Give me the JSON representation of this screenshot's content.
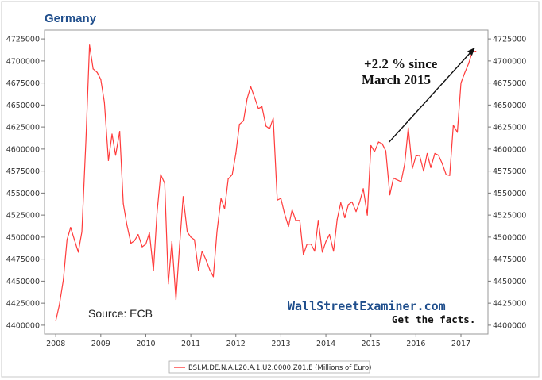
{
  "chart_data": {
    "type": "line",
    "title": "Germany",
    "xlabel": "",
    "ylabel": "",
    "xlim": [
      2007.75,
      2017.6
    ],
    "ylim": [
      4390000,
      4735000
    ],
    "xticks": [
      "2008",
      "2009",
      "2010",
      "2011",
      "2012",
      "2013",
      "2014",
      "2015",
      "2016",
      "2017"
    ],
    "yticks": [
      "4400000",
      "4425000",
      "4450000",
      "4475000",
      "4500000",
      "4525000",
      "4550000",
      "4575000",
      "4600000",
      "4625000",
      "4650000",
      "4675000",
      "4700000",
      "4725000"
    ],
    "grid": false,
    "legend_position": "bottom-center",
    "series": [
      {
        "name": "BSI.M.DE.N.A.L20.A.1.U2.0000.Z01.E (Millions of Euro)",
        "color": "#ff3b3b",
        "x": [
          2008.0,
          2008.08,
          2008.17,
          2008.25,
          2008.33,
          2008.42,
          2008.5,
          2008.58,
          2008.67,
          2008.75,
          2008.83,
          2008.92,
          2009.0,
          2009.08,
          2009.17,
          2009.25,
          2009.33,
          2009.42,
          2009.5,
          2009.58,
          2009.67,
          2009.75,
          2009.83,
          2009.92,
          2010.0,
          2010.08,
          2010.17,
          2010.25,
          2010.33,
          2010.42,
          2010.5,
          2010.58,
          2010.67,
          2010.75,
          2010.83,
          2010.92,
          2011.0,
          2011.08,
          2011.17,
          2011.25,
          2011.33,
          2011.42,
          2011.5,
          2011.58,
          2011.67,
          2011.75,
          2011.83,
          2011.92,
          2012.0,
          2012.08,
          2012.17,
          2012.25,
          2012.33,
          2012.42,
          2012.5,
          2012.58,
          2012.67,
          2012.75,
          2012.83,
          2012.92,
          2013.0,
          2013.08,
          2013.17,
          2013.25,
          2013.33,
          2013.42,
          2013.5,
          2013.58,
          2013.67,
          2013.75,
          2013.83,
          2013.92,
          2014.0,
          2014.08,
          2014.17,
          2014.25,
          2014.33,
          2014.42,
          2014.5,
          2014.58,
          2014.67,
          2014.75,
          2014.83,
          2014.92,
          2015.0,
          2015.08,
          2015.17,
          2015.25,
          2015.33,
          2015.42,
          2015.5,
          2015.58,
          2015.67,
          2015.75,
          2015.83,
          2015.92,
          2016.0,
          2016.08,
          2016.17,
          2016.25,
          2016.33,
          2016.42,
          2016.5,
          2016.58,
          2016.67,
          2016.75,
          2016.83,
          2016.92,
          2017.0,
          2017.08,
          2017.17,
          2017.25,
          2017.33
        ],
        "values": [
          4405000,
          4423000,
          4452000,
          4497000,
          4511000,
          4496000,
          4483000,
          4506000,
          4610000,
          4718000,
          4691000,
          4687000,
          4679000,
          4653000,
          4587000,
          4617000,
          4593000,
          4620000,
          4538000,
          4514000,
          4493000,
          4496000,
          4503000,
          4489000,
          4492000,
          4505000,
          4462000,
          4528000,
          4571000,
          4561000,
          4447000,
          4495000,
          4429000,
          4490000,
          4546000,
          4506000,
          4500000,
          4497000,
          4462000,
          4484000,
          4475000,
          4463000,
          4455000,
          4506000,
          4544000,
          4532000,
          4566000,
          4571000,
          4595000,
          4628000,
          4632000,
          4657000,
          4671000,
          4658000,
          4646000,
          4648000,
          4626000,
          4623000,
          4635000,
          4542000,
          4544000,
          4527000,
          4512000,
          4531000,
          4519000,
          4519000,
          4480000,
          4492000,
          4492000,
          4484000,
          4519000,
          4483000,
          4495000,
          4503000,
          4484000,
          4520000,
          4539000,
          4522000,
          4537000,
          4540000,
          4529000,
          4540000,
          4555000,
          4525000,
          4604000,
          4597000,
          4608000,
          4606000,
          4598000,
          4548000,
          4567000,
          4565000,
          4563000,
          4583000,
          4624000,
          4578000,
          4592000,
          4593000,
          4575000,
          4595000,
          4579000,
          4595000,
          4593000,
          4584000,
          4571000,
          4570000,
          4627000,
          4619000,
          4675000,
          4686000,
          4697000,
          4710000,
          4711000
        ]
      }
    ],
    "annotations": [
      {
        "text_lines": [
          "+2.2 % since",
          "March 2015"
        ],
        "arrow_from": [
          2015.4,
          4605000
        ],
        "arrow_to": [
          2017.3,
          4711000
        ]
      }
    ],
    "source": "Source: ECB",
    "watermark": {
      "brand": "WallStreetExaminer.com",
      "tagline": "Get the facts."
    }
  }
}
